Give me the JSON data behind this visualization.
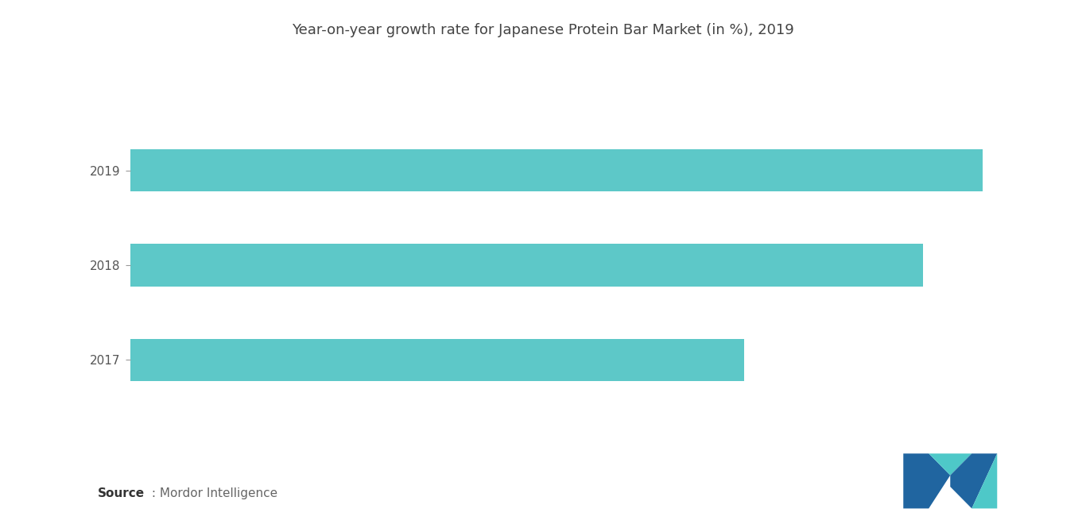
{
  "title": "Year-on-year growth rate for Japanese Protein Bar Market (in %), 2019",
  "categories": [
    "2019",
    "2018",
    "2017"
  ],
  "values": [
    100,
    93,
    72
  ],
  "bar_color": "#5DC8C8",
  "background_color": "#ffffff",
  "title_fontsize": 13,
  "tick_fontsize": 11,
  "source_bold": "Source",
  "source_text": " : Mordor Intelligence",
  "source_fontsize": 11,
  "logo_teal": "#4EC8C8",
  "logo_blue": "#2065A0"
}
